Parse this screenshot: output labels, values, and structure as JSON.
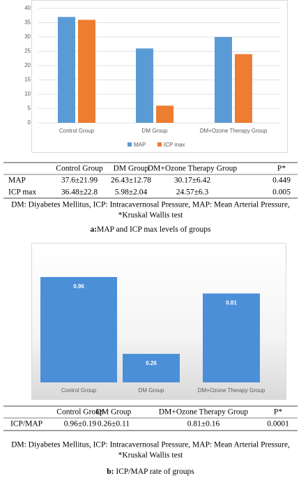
{
  "chart_data": [
    {
      "type": "bar",
      "categories": [
        "Control Group",
        "DM Group",
        "DM+Ozone Therapy Group"
      ],
      "series": [
        {
          "name": "MAP",
          "color": "#5b9bd5",
          "values": [
            37,
            26,
            30
          ]
        },
        {
          "name": "ICP max",
          "color": "#ed7d31",
          "values": [
            36,
            6,
            24
          ]
        }
      ],
      "ylim": [
        0,
        40
      ],
      "yticks": [
        0,
        5,
        10,
        15,
        20,
        25,
        30,
        35,
        40
      ],
      "grid": true,
      "legend": "bottom"
    },
    {
      "type": "bar",
      "categories": [
        "Control Group",
        "DM Group",
        "DM+Ozone Therapy Group"
      ],
      "values": [
        0.96,
        0.26,
        0.81
      ],
      "color": "#4a8fd8"
    }
  ],
  "table_a": {
    "header": [
      "Control Group",
      "DM Group",
      "DM+Ozone Therapy Group",
      "P*"
    ],
    "rows": [
      [
        "MAP",
        "37.6±21.99",
        "26.43±12.78",
        "30.17±6.42",
        "0.449"
      ],
      [
        "ICP max",
        "36.48±22.8",
        "5.98±2.04",
        "24.57±6.3",
        "0.005"
      ]
    ],
    "notes": [
      "DM: Diyabetes Mellitus, ICP: Intracavernosal Pressure, MAP: Mean Arterial Pressure,",
      "*Kruskal Wallis test"
    ],
    "caption_label": "a:",
    "caption_text": "MAP and ICP max levels of groups"
  },
  "table_b": {
    "header": [
      "Control Group",
      "DM Group",
      "DM+Ozone Therapy Group",
      "P*"
    ],
    "rows": [
      [
        "ICP/MAP",
        "0.96±0.19",
        "0.26±0.11",
        "0.81±0.16",
        "0.0001"
      ]
    ],
    "notes": [
      "DM: Diyabetes Mellitus, ICP: Intracavernosal Pressure, MAP: Mean Arterial Pressure,",
      "*Kruskal Wallis test"
    ],
    "caption_label": "b:",
    "caption_text": " ICP/MAP rate of groups"
  }
}
